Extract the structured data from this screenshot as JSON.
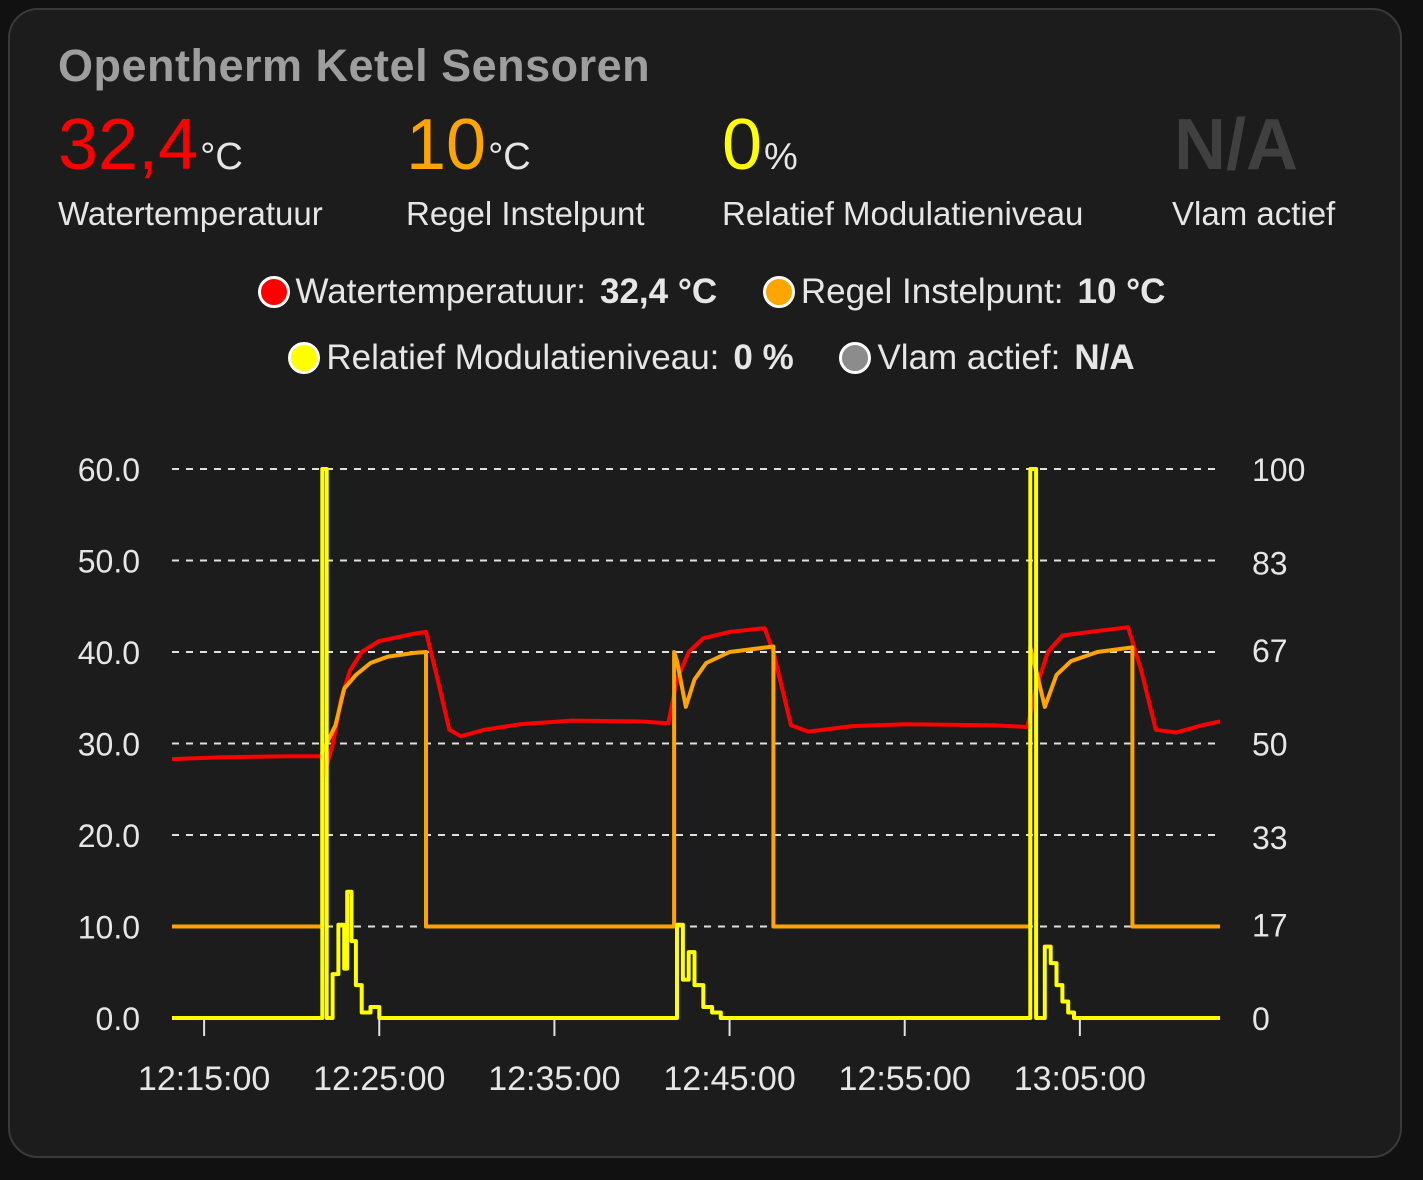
{
  "card": {
    "title": "Opentherm Ketel Sensoren",
    "states": [
      {
        "value": "32,4",
        "unit": "°C",
        "label": "Watertemperatuur",
        "color": "#ff0000"
      },
      {
        "value": "10",
        "unit": "°C",
        "label": "Regel Instelpunt",
        "color": "#ffa500"
      },
      {
        "value": "0",
        "unit": "%",
        "label": "Relatief Modulatieniveau",
        "color": "#ffff00"
      },
      {
        "value": "N/A",
        "unit": "",
        "label": "Vlam actief",
        "color": "#404040"
      }
    ],
    "legend": [
      {
        "name": "Watertemperatuur:",
        "value": "32,4 °C",
        "color": "#ff0000"
      },
      {
        "name": "Regel Instelpunt:",
        "value": "10 °C",
        "color": "#ffa500"
      },
      {
        "name": "Relatief Modulatieniveau:",
        "value": "0 %",
        "color": "#ffff00"
      },
      {
        "name": "Vlam actief:",
        "value": "N/A",
        "color": "#8c8c8c"
      }
    ]
  },
  "chart_data": {
    "type": "line",
    "x_type": "time",
    "xlim": [
      "12:13:10",
      "13:13:00"
    ],
    "y_left": {
      "range": [
        0,
        60
      ],
      "ticks": [
        "0.0",
        "10.0",
        "20.0",
        "30.0",
        "40.0",
        "50.0",
        "60.0"
      ]
    },
    "y_right": {
      "range": [
        0,
        100
      ],
      "ticks": [
        "0",
        "17",
        "33",
        "50",
        "67",
        "83",
        "100"
      ]
    },
    "x_ticks": [
      "12:15:00",
      "12:25:00",
      "12:35:00",
      "12:45:00",
      "12:55:00",
      "13:05:00"
    ],
    "grid": "horizontal dashed",
    "series": [
      {
        "name": "Watertemperatuur",
        "axis": "left",
        "color": "#ff0000",
        "points": [
          [
            "12:13:10",
            28.3
          ],
          [
            "12:16:00",
            28.5
          ],
          [
            "12:20:00",
            28.6
          ],
          [
            "12:21:45",
            28.6
          ],
          [
            "12:21:50",
            26.5
          ],
          [
            "12:22:20",
            29.8
          ],
          [
            "12:22:50",
            35.0
          ],
          [
            "12:23:20",
            38.0
          ],
          [
            "12:24:00",
            40.0
          ],
          [
            "12:25:00",
            41.2
          ],
          [
            "12:26:00",
            41.6
          ],
          [
            "12:27:00",
            42.0
          ],
          [
            "12:27:40",
            42.2
          ],
          [
            "12:28:20",
            37.0
          ],
          [
            "12:29:00",
            31.5
          ],
          [
            "12:29:40",
            30.8
          ],
          [
            "12:31:00",
            31.5
          ],
          [
            "12:33:00",
            32.1
          ],
          [
            "12:36:00",
            32.5
          ],
          [
            "12:40:00",
            32.4
          ],
          [
            "12:41:30",
            32.2
          ],
          [
            "12:42:00",
            37.0
          ],
          [
            "12:42:40",
            40.0
          ],
          [
            "12:43:30",
            41.5
          ],
          [
            "12:45:00",
            42.2
          ],
          [
            "12:47:00",
            42.6
          ],
          [
            "12:47:30",
            40.0
          ],
          [
            "12:48:30",
            32.0
          ],
          [
            "12:49:30",
            31.3
          ],
          [
            "12:52:00",
            31.9
          ],
          [
            "12:55:00",
            32.1
          ],
          [
            "13:00:00",
            32.0
          ],
          [
            "13:02:00",
            31.8
          ],
          [
            "13:02:30",
            36.0
          ],
          [
            "13:03:10",
            40.0
          ],
          [
            "13:04:00",
            41.8
          ],
          [
            "13:06:00",
            42.3
          ],
          [
            "13:07:45",
            42.7
          ],
          [
            "13:08:30",
            38.0
          ],
          [
            "13:09:20",
            31.5
          ],
          [
            "13:10:30",
            31.2
          ],
          [
            "13:12:00",
            32.0
          ],
          [
            "13:13:00",
            32.4
          ]
        ]
      },
      {
        "name": "Regel Instelpunt",
        "axis": "left",
        "color": "#ffa500",
        "points": [
          [
            "12:13:10",
            10.0
          ],
          [
            "12:21:45",
            10.0
          ],
          [
            "12:21:45",
            29.0
          ],
          [
            "12:22:30",
            32.0
          ],
          [
            "12:23:00",
            36.0
          ],
          [
            "12:23:40",
            37.5
          ],
          [
            "12:24:30",
            38.8
          ],
          [
            "12:25:30",
            39.5
          ],
          [
            "12:27:00",
            39.9
          ],
          [
            "12:27:40",
            40.0
          ],
          [
            "12:27:40",
            10.0
          ],
          [
            "12:41:50",
            10.0
          ],
          [
            "12:41:50",
            40.0
          ],
          [
            "12:42:00",
            39.0
          ],
          [
            "12:42:30",
            34.0
          ],
          [
            "12:43:00",
            37.0
          ],
          [
            "12:43:40",
            38.8
          ],
          [
            "12:45:00",
            40.0
          ],
          [
            "12:47:30",
            40.6
          ],
          [
            "12:47:30",
            10.0
          ],
          [
            "13:02:10",
            10.0
          ],
          [
            "13:02:10",
            40.5
          ],
          [
            "13:02:30",
            38.0
          ],
          [
            "13:03:00",
            34.0
          ],
          [
            "13:03:40",
            37.5
          ],
          [
            "13:04:30",
            39.0
          ],
          [
            "13:06:00",
            40.0
          ],
          [
            "13:08:00",
            40.5
          ],
          [
            "13:08:00",
            10.0
          ],
          [
            "13:13:00",
            10.0
          ]
        ]
      },
      {
        "name": "Relatief Modulatieniveau",
        "axis": "right",
        "color": "#ffff00",
        "points": [
          [
            "12:13:10",
            0
          ],
          [
            "12:21:45",
            0
          ],
          [
            "12:21:45",
            100
          ],
          [
            "12:22:00",
            100
          ],
          [
            "12:22:00",
            0
          ],
          [
            "12:22:20",
            0
          ],
          [
            "12:22:20",
            8
          ],
          [
            "12:22:40",
            8
          ],
          [
            "12:22:40",
            17
          ],
          [
            "12:23:00",
            17
          ],
          [
            "12:23:00",
            9
          ],
          [
            "12:23:10",
            9
          ],
          [
            "12:23:10",
            23
          ],
          [
            "12:23:25",
            23
          ],
          [
            "12:23:25",
            14
          ],
          [
            "12:23:40",
            14
          ],
          [
            "12:23:40",
            6
          ],
          [
            "12:24:00",
            6
          ],
          [
            "12:24:00",
            1
          ],
          [
            "12:24:30",
            1
          ],
          [
            "12:24:30",
            2
          ],
          [
            "12:25:00",
            2
          ],
          [
            "12:25:00",
            0
          ],
          [
            "12:42:00",
            0
          ],
          [
            "12:42:00",
            17
          ],
          [
            "12:42:20",
            17
          ],
          [
            "12:42:20",
            7
          ],
          [
            "12:42:40",
            7
          ],
          [
            "12:42:40",
            12
          ],
          [
            "12:43:00",
            12
          ],
          [
            "12:43:00",
            6
          ],
          [
            "12:43:30",
            6
          ],
          [
            "12:43:30",
            2
          ],
          [
            "12:44:00",
            2
          ],
          [
            "12:44:00",
            1
          ],
          [
            "12:44:30",
            1
          ],
          [
            "12:44:30",
            0
          ],
          [
            "13:02:10",
            0
          ],
          [
            "13:02:10",
            100
          ],
          [
            "13:02:30",
            100
          ],
          [
            "13:02:30",
            0
          ],
          [
            "13:03:00",
            0
          ],
          [
            "13:03:00",
            13
          ],
          [
            "13:03:20",
            13
          ],
          [
            "13:03:20",
            10
          ],
          [
            "13:03:40",
            10
          ],
          [
            "13:03:40",
            6
          ],
          [
            "13:04:00",
            6
          ],
          [
            "13:04:00",
            3
          ],
          [
            "13:04:20",
            3
          ],
          [
            "13:04:20",
            1
          ],
          [
            "13:04:40",
            1
          ],
          [
            "13:04:40",
            0
          ],
          [
            "13:13:00",
            0
          ]
        ]
      }
    ]
  }
}
